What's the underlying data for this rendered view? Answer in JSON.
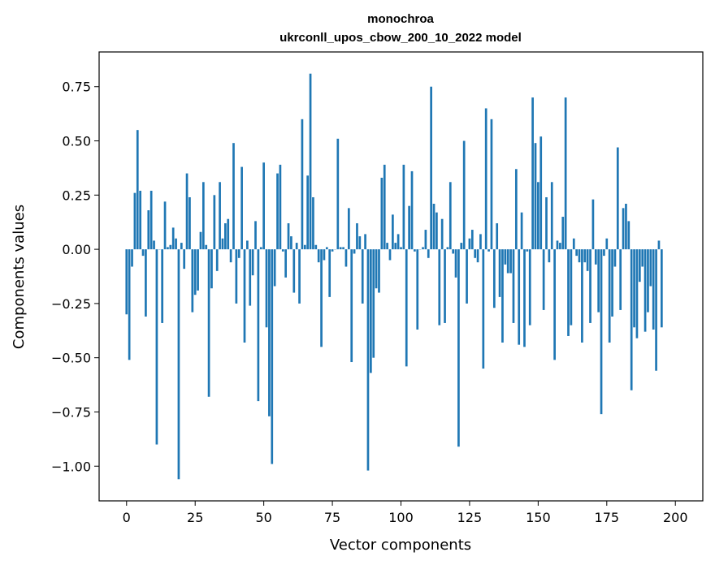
{
  "chart_data": {
    "type": "bar",
    "title": "monochroa",
    "subtitle": "ukrconll_upos_cbow_200_10_2022 model",
    "xlabel": "Vector components",
    "ylabel": "Components values",
    "xlim": [
      -10,
      210
    ],
    "ylim": [
      -1.16,
      0.91
    ],
    "xticks": [
      0,
      25,
      50,
      75,
      100,
      125,
      150,
      175,
      200
    ],
    "yticks": [
      0.75,
      0.5,
      0.25,
      0.0,
      -0.25,
      -0.5,
      -0.75,
      -1.0
    ],
    "ytick_labels": [
      "0.75",
      "0.50",
      "0.25",
      "0.00",
      "−0.25",
      "−0.50",
      "−0.75",
      "−1.00"
    ],
    "xtick_labels": [
      "0",
      "25",
      "50",
      "75",
      "100",
      "125",
      "150",
      "175",
      "200"
    ],
    "bar_color": "#1f77b4",
    "values": [
      -0.3,
      -0.51,
      -0.08,
      0.26,
      0.55,
      0.27,
      -0.03,
      -0.31,
      0.18,
      0.27,
      0.04,
      -0.9,
      0.0,
      -0.34,
      0.22,
      0.01,
      0.02,
      0.1,
      0.05,
      -1.06,
      0.03,
      -0.09,
      0.35,
      0.24,
      -0.29,
      -0.21,
      -0.19,
      0.08,
      0.31,
      0.02,
      -0.68,
      -0.18,
      0.25,
      -0.1,
      0.31,
      0.05,
      0.12,
      0.14,
      -0.06,
      0.49,
      -0.25,
      -0.04,
      0.38,
      -0.43,
      0.04,
      -0.26,
      -0.12,
      0.13,
      -0.7,
      0.01,
      0.4,
      -0.36,
      -0.77,
      -0.99,
      -0.17,
      0.35,
      0.39,
      -0.01,
      -0.13,
      0.12,
      0.06,
      -0.2,
      0.03,
      -0.25,
      0.6,
      0.02,
      0.34,
      0.81,
      0.24,
      0.02,
      -0.06,
      -0.45,
      -0.05,
      0.01,
      -0.22,
      -0.01,
      0.0,
      0.51,
      0.01,
      0.01,
      -0.08,
      0.19,
      -0.52,
      -0.02,
      0.12,
      0.06,
      -0.25,
      0.07,
      -1.02,
      -0.57,
      -0.5,
      -0.18,
      -0.2,
      0.33,
      0.39,
      0.03,
      -0.05,
      0.16,
      0.03,
      0.07,
      0.01,
      0.39,
      -0.54,
      0.2,
      0.36,
      -0.01,
      -0.37,
      0.0,
      0.01,
      0.09,
      -0.04,
      0.75,
      0.21,
      0.17,
      -0.35,
      0.14,
      -0.34,
      0.01,
      0.31,
      -0.02,
      -0.13,
      -0.91,
      0.03,
      0.5,
      -0.25,
      0.05,
      0.09,
      -0.04,
      -0.06,
      0.07,
      -0.55,
      0.65,
      -0.01,
      0.6,
      -0.27,
      0.12,
      -0.22,
      -0.43,
      -0.07,
      -0.11,
      -0.11,
      -0.34,
      0.37,
      -0.44,
      0.17,
      -0.45,
      -0.01,
      -0.35,
      0.7,
      0.49,
      0.31,
      0.52,
      -0.28,
      0.24,
      -0.06,
      0.31,
      -0.51,
      0.04,
      0.03,
      0.15,
      0.7,
      -0.4,
      -0.35,
      0.05,
      -0.03,
      -0.06,
      -0.43,
      -0.06,
      -0.1,
      -0.34,
      0.23,
      -0.07,
      -0.29,
      -0.76,
      -0.03,
      0.05,
      -0.43,
      -0.31,
      -0.08,
      0.47,
      -0.28,
      0.19,
      0.21,
      0.13,
      -0.65,
      -0.36,
      -0.41,
      -0.15,
      -0.08,
      -0.38,
      -0.29,
      -0.17,
      -0.37,
      -0.56,
      0.04,
      -0.36
    ]
  }
}
